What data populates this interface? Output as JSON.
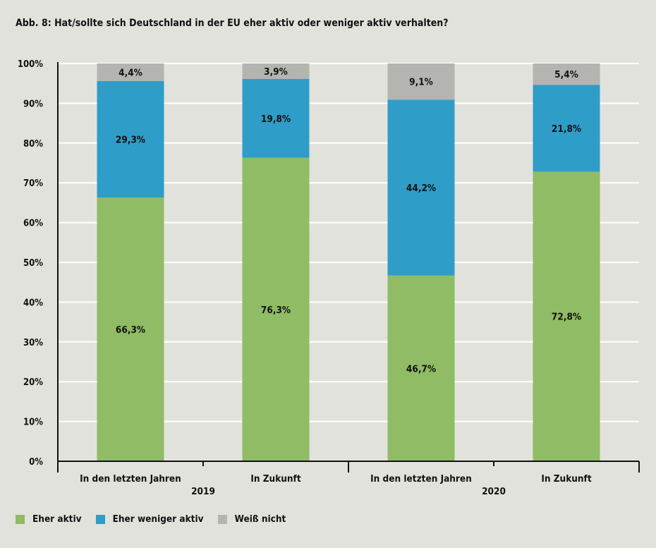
{
  "title": "Abb. 8: Hat/sollte sich Deutschland in der EU eher aktiv oder weniger aktiv verhalten?",
  "chart_data": {
    "type": "bar",
    "stacked": true,
    "categories": [
      "In den letzten Jahren",
      "In Zukunft",
      "In den letzten Jahren",
      "In Zukunft"
    ],
    "groups": [
      {
        "label": "2019",
        "categories": [
          0,
          1
        ]
      },
      {
        "label": "2020",
        "categories": [
          2,
          3
        ]
      }
    ],
    "series": [
      {
        "name": "Eher aktiv",
        "color": "#8fbc65",
        "values": [
          66.3,
          76.3,
          46.7,
          72.8
        ],
        "labels": [
          "66,3%",
          "76,3%",
          "46,7%",
          "72,8%"
        ]
      },
      {
        "name": "Eher weniger aktiv",
        "color": "#2e9dc8",
        "values": [
          29.3,
          19.8,
          44.2,
          21.8
        ],
        "labels": [
          "29,3%",
          "19,8%",
          "44,2%",
          "21,8%"
        ]
      },
      {
        "name": "Weiß nicht",
        "color": "#b4b4b0",
        "values": [
          4.4,
          3.9,
          9.1,
          5.4
        ],
        "labels": [
          "4,4%",
          "3,9%",
          "9,1%",
          "5,4%"
        ]
      }
    ],
    "ylim": [
      0,
      100
    ],
    "yticks": [
      "0%",
      "10%",
      "20%",
      "30%",
      "40%",
      "50%",
      "60%",
      "70%",
      "80%",
      "90%",
      "100%"
    ],
    "grid": true,
    "legend": "bottom-left"
  },
  "legend": [
    {
      "label": "Eher aktiv",
      "color": "#8fbc65"
    },
    {
      "label": "Eher weniger aktiv",
      "color": "#2e9dc8"
    },
    {
      "label": "Weiß nicht",
      "color": "#b4b4b0"
    }
  ]
}
